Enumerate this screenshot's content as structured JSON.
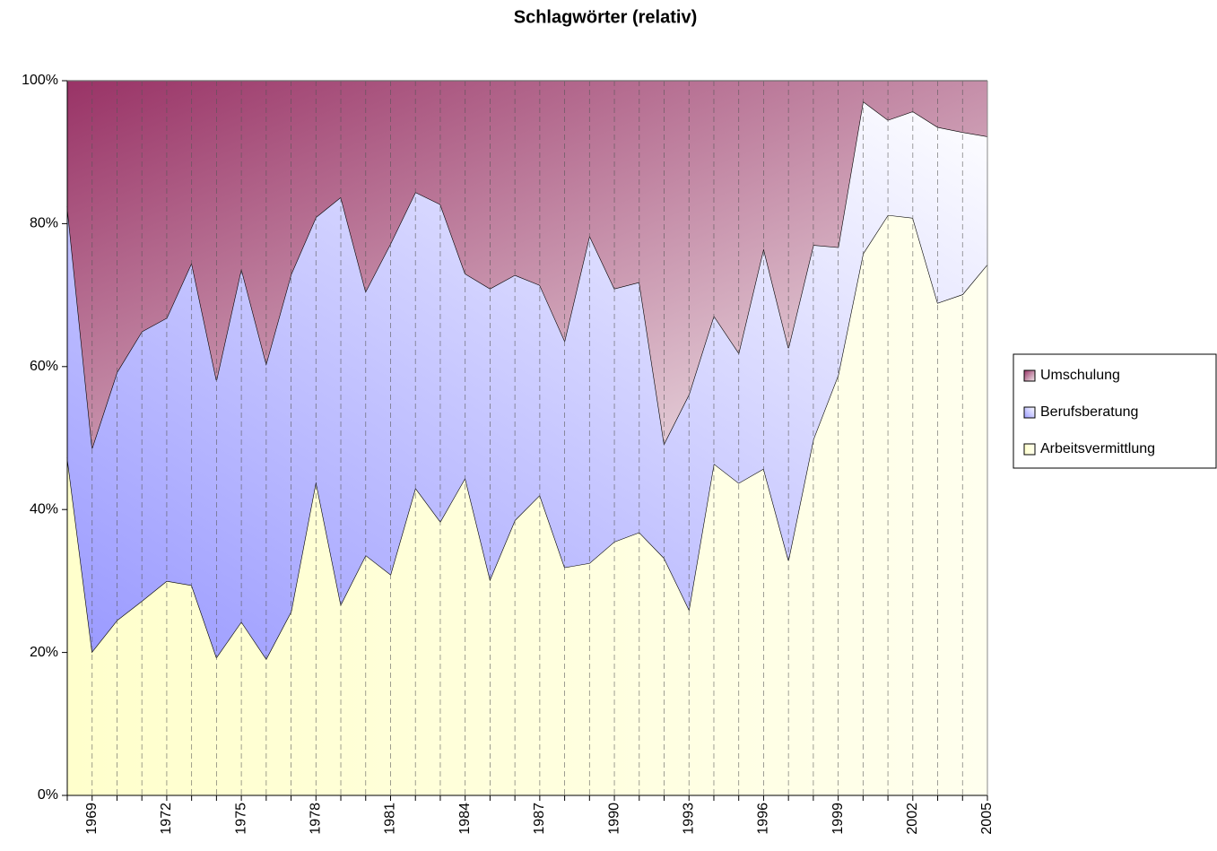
{
  "chart_data": {
    "type": "area",
    "stacked": true,
    "title": "Schlagwörter (relativ)",
    "categories": [
      null,
      "1969",
      null,
      null,
      "1972",
      null,
      null,
      "1975",
      null,
      null,
      "1978",
      null,
      null,
      "1981",
      null,
      null,
      "1984",
      null,
      null,
      "1987",
      null,
      null,
      "1990",
      null,
      null,
      "1993",
      null,
      null,
      "1996",
      null,
      null,
      "1999",
      null,
      null,
      "2002",
      null,
      null,
      "2005"
    ],
    "series": [
      {
        "name": "Arbeitsvermittlung",
        "color": "#ffffcc",
        "values": [
          47.3,
          20.1,
          24.5,
          27.2,
          30.0,
          29.4,
          19.3,
          24.3,
          19.1,
          25.7,
          43.9,
          26.7,
          33.6,
          30.9,
          43.0,
          38.3,
          44.4,
          30.2,
          38.5,
          42.0,
          31.9,
          32.5,
          35.5,
          36.8,
          33.2,
          26.0,
          46.4,
          43.7,
          45.7,
          32.9,
          49.8,
          58.8,
          75.8,
          81.2,
          80.8,
          68.9,
          70.1,
          74.3
        ]
      },
      {
        "name": "Berufsberatung",
        "color": "#9999ff",
        "values": [
          35.1,
          28.5,
          34.7,
          37.7,
          36.8,
          45.1,
          38.8,
          49.4,
          41.3,
          47.2,
          37.0,
          57.0,
          36.9,
          46.3,
          41.4,
          44.4,
          28.6,
          40.7,
          34.3,
          29.4,
          31.7,
          45.8,
          35.4,
          35.0,
          16.0,
          30.1,
          20.7,
          18.2,
          30.8,
          29.7,
          27.2,
          17.9,
          21.3,
          13.3,
          14.9,
          24.6,
          22.7,
          17.9
        ]
      },
      {
        "name": "Umschulung",
        "color": "#993366",
        "values": [
          17.6,
          51.4,
          40.8,
          35.1,
          33.2,
          25.5,
          41.9,
          26.3,
          39.6,
          27.1,
          19.1,
          16.3,
          29.5,
          22.8,
          15.6,
          17.3,
          27.0,
          29.1,
          27.2,
          28.6,
          36.4,
          21.7,
          29.1,
          28.2,
          50.8,
          43.9,
          32.9,
          38.1,
          23.5,
          37.4,
          23.0,
          23.3,
          2.9,
          5.5,
          4.3,
          6.5,
          7.2,
          7.8
        ]
      }
    ],
    "ylim": [
      0,
      100
    ],
    "yticks": [
      {
        "value": 0,
        "label": "0%"
      },
      {
        "value": 20,
        "label": "20%"
      },
      {
        "value": 40,
        "label": "40%"
      },
      {
        "value": 60,
        "label": "60%"
      },
      {
        "value": 80,
        "label": "80%"
      },
      {
        "value": 100,
        "label": "100%"
      }
    ],
    "grid": true,
    "legend": "right"
  }
}
